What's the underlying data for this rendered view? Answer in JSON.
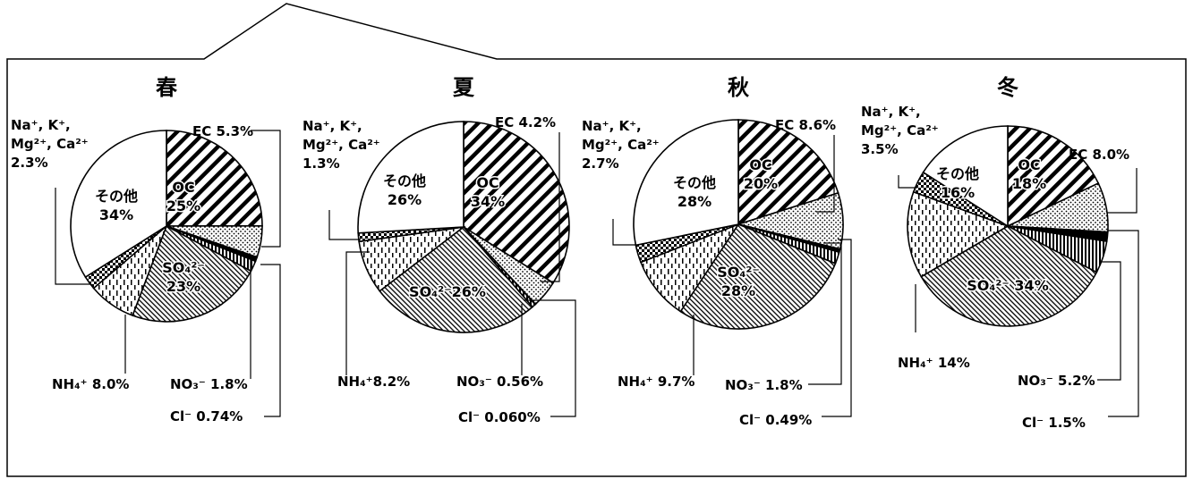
{
  "chart_data": [
    {
      "type": "pie",
      "title": "春",
      "slices": [
        {
          "key": "oc",
          "label": "OC",
          "value": 25,
          "pattern": "diag-thick",
          "label_text": "OC\n25%",
          "inside": true
        },
        {
          "key": "ec",
          "label": "EC",
          "value": 5.3,
          "pattern": "dots",
          "label_text": "EC 5.3%"
        },
        {
          "key": "cl",
          "label": "Cl⁻",
          "value": 0.74,
          "pattern": "black",
          "label_text": "Cl⁻ 0.74%"
        },
        {
          "key": "no3",
          "label": "NO₃⁻",
          "value": 1.8,
          "pattern": "vlines",
          "label_text": "NO₃⁻ 1.8%"
        },
        {
          "key": "so4",
          "label": "SO₄²⁻",
          "value": 23,
          "pattern": "diag-fine",
          "label_text": "SO₄²⁻\n23%",
          "inside": true
        },
        {
          "key": "nh4",
          "label": "NH₄⁺",
          "value": 8.0,
          "pattern": "dashes",
          "label_text": "NH₄⁺ 8.0%"
        },
        {
          "key": "na",
          "label": "Na⁺, K⁺, Mg²⁺, Ca²⁺",
          "value": 2.3,
          "pattern": "checker",
          "label_text": "Na⁺, K⁺,\nMg²⁺, Ca²⁺\n2.3%"
        },
        {
          "key": "other",
          "label": "その他",
          "value": 34,
          "pattern": "white",
          "label_text": "その他\n34%",
          "inside": true
        }
      ]
    },
    {
      "type": "pie",
      "title": "夏",
      "slices": [
        {
          "key": "oc",
          "label": "OC",
          "value": 34,
          "pattern": "diag-thick",
          "label_text": "OC\n34%",
          "inside": true
        },
        {
          "key": "ec",
          "label": "EC",
          "value": 4.2,
          "pattern": "dots",
          "label_text": "EC 4.2%"
        },
        {
          "key": "cl",
          "label": "Cl⁻",
          "value": 0.06,
          "pattern": "black",
          "label_text": "Cl⁻ 0.060%"
        },
        {
          "key": "no3",
          "label": "NO₃⁻",
          "value": 0.56,
          "pattern": "vlines",
          "label_text": "NO₃⁻ 0.56%"
        },
        {
          "key": "so4",
          "label": "SO₄²⁻",
          "value": 26,
          "pattern": "diag-fine",
          "label_text": "SO₄²⁻26%",
          "inside": true
        },
        {
          "key": "nh4",
          "label": "NH₄⁺",
          "value": 8.2,
          "pattern": "dashes",
          "label_text": "NH₄⁺8.2%"
        },
        {
          "key": "na",
          "label": "Na⁺, K⁺, Mg²⁺, Ca²⁺",
          "value": 1.3,
          "pattern": "checker",
          "label_text": "Na⁺, K⁺,\nMg²⁺, Ca²⁺\n1.3%"
        },
        {
          "key": "other",
          "label": "その他",
          "value": 26,
          "pattern": "white",
          "label_text": "その他\n26%",
          "inside": true
        }
      ]
    },
    {
      "type": "pie",
      "title": "秋",
      "slices": [
        {
          "key": "oc",
          "label": "OC",
          "value": 20,
          "pattern": "diag-thick",
          "label_text": "OC\n20%",
          "inside": true
        },
        {
          "key": "ec",
          "label": "EC",
          "value": 8.6,
          "pattern": "dots",
          "label_text": "EC 8.6%"
        },
        {
          "key": "cl",
          "label": "Cl⁻",
          "value": 0.49,
          "pattern": "black",
          "label_text": "Cl⁻ 0.49%"
        },
        {
          "key": "no3",
          "label": "NO₃⁻",
          "value": 1.8,
          "pattern": "vlines",
          "label_text": "NO₃⁻ 1.8%"
        },
        {
          "key": "so4",
          "label": "SO₄²⁻",
          "value": 28,
          "pattern": "diag-fine",
          "label_text": "SO₄²⁻\n28%",
          "inside": true
        },
        {
          "key": "nh4",
          "label": "NH₄⁺",
          "value": 9.7,
          "pattern": "dashes",
          "label_text": "NH₄⁺ 9.7%"
        },
        {
          "key": "na",
          "label": "Na⁺, K⁺, Mg²⁺, Ca²⁺",
          "value": 2.7,
          "pattern": "checker",
          "label_text": "Na⁺, K⁺,\nMg²⁺, Ca²⁺\n2.7%"
        },
        {
          "key": "other",
          "label": "その他",
          "value": 28,
          "pattern": "white",
          "label_text": "その他\n28%",
          "inside": true
        }
      ]
    },
    {
      "type": "pie",
      "title": "冬",
      "slices": [
        {
          "key": "oc",
          "label": "OC",
          "value": 18,
          "pattern": "diag-thick",
          "label_text": "OC\n18%",
          "inside": true
        },
        {
          "key": "ec",
          "label": "EC",
          "value": 8.0,
          "pattern": "dots",
          "label_text": "EC 8.0%"
        },
        {
          "key": "cl",
          "label": "Cl⁻",
          "value": 1.5,
          "pattern": "black",
          "label_text": "Cl⁻ 1.5%"
        },
        {
          "key": "no3",
          "label": "NO₃⁻",
          "value": 5.2,
          "pattern": "vlines",
          "label_text": "NO₃⁻ 5.2%"
        },
        {
          "key": "so4",
          "label": "SO₄²⁻",
          "value": 34,
          "pattern": "diag-fine",
          "label_text": "SO₄²⁻ 34%",
          "inside": true
        },
        {
          "key": "nh4",
          "label": "NH₄⁺",
          "value": 14,
          "pattern": "dashes",
          "label_text": "NH₄⁺ 14%"
        },
        {
          "key": "na",
          "label": "Na⁺, K⁺, Mg²⁺, Ca²⁺",
          "value": 3.5,
          "pattern": "checker",
          "label_text": "Na⁺, K⁺,\nMg²⁺, Ca²⁺\n3.5%"
        },
        {
          "key": "other",
          "label": "その他",
          "value": 16,
          "pattern": "white",
          "label_text": "その他\n16%",
          "inside": true
        }
      ]
    }
  ]
}
